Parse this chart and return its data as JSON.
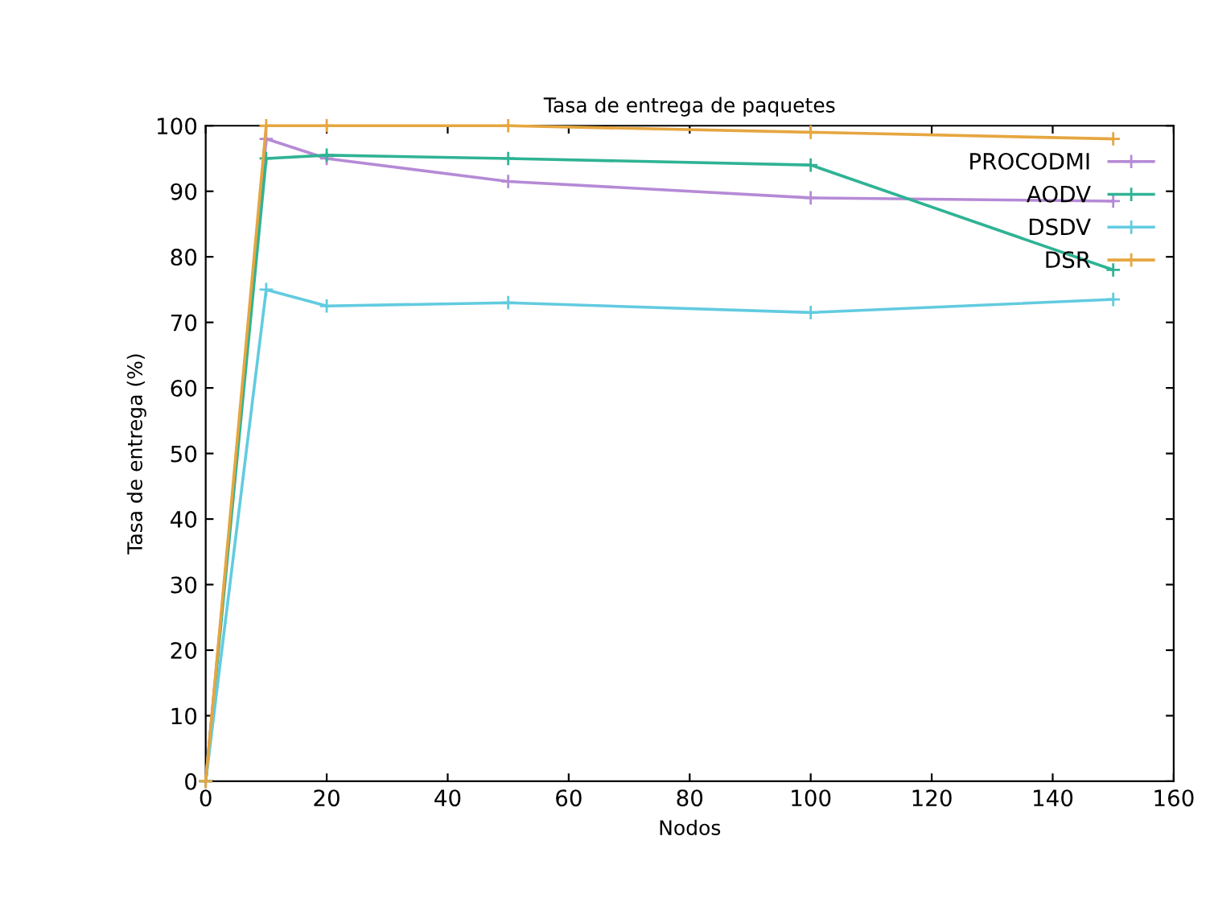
{
  "chart_data": {
    "type": "line",
    "title": "Tasa de entrega de paquetes",
    "xlabel": "Nodos",
    "ylabel": "Tasa de entrega (%)",
    "x": [
      0,
      10,
      20,
      50,
      100,
      150
    ],
    "series": [
      {
        "name": "PROCODMI",
        "color": "#b58ad6",
        "values": [
          0,
          98,
          95,
          91.5,
          89,
          88.5
        ]
      },
      {
        "name": "AODV",
        "color": "#2fb394",
        "values": [
          0,
          95,
          95.5,
          95,
          94,
          78
        ]
      },
      {
        "name": "DSDV",
        "color": "#62cbe0",
        "values": [
          0,
          75,
          72.5,
          73,
          71.5,
          73.5
        ]
      },
      {
        "name": "DSR",
        "color": "#e6a640",
        "values": [
          0,
          100,
          100,
          100,
          99,
          98
        ]
      }
    ],
    "xlim": [
      0,
      160
    ],
    "xticks": [
      0,
      20,
      40,
      60,
      80,
      100,
      120,
      140,
      160
    ],
    "ylim": [
      0,
      100
    ],
    "yticks": [
      0,
      10,
      20,
      30,
      40,
      50,
      60,
      70,
      80,
      90,
      100
    ],
    "grid": false,
    "legend": "top right",
    "marker": "cross",
    "line_style": "solid"
  }
}
